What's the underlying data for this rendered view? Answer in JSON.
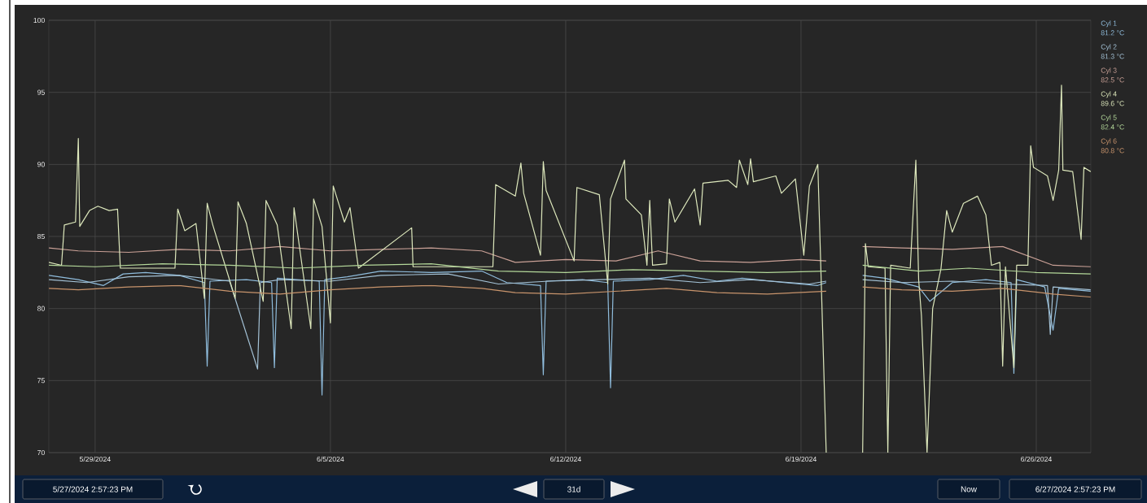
{
  "chart_data": {
    "type": "line",
    "xlim": [
      "2024-05-27T14:57",
      "2024-06-27T14:57"
    ],
    "ylim": [
      70,
      100
    ],
    "xticks": [
      {
        "value": "2024-05-29",
        "label": "5/29/2024"
      },
      {
        "value": "2024-06-05",
        "label": "6/5/2024"
      },
      {
        "value": "2024-06-12",
        "label": "6/12/2024"
      },
      {
        "value": "2024-06-19",
        "label": "6/19/2024"
      },
      {
        "value": "2024-06-26",
        "label": "6/26/2024"
      }
    ],
    "yticks": [
      70,
      75,
      80,
      85,
      90,
      95,
      100
    ],
    "grid": true,
    "legend": "right",
    "annotations": [
      "81.2 °C",
      "81.3 °C",
      "82.5 °C",
      "89.6 °C",
      "82.4 °C",
      "80.8 °C",
      "5/27/2024 2:57:23 PM",
      "31d",
      "Now",
      "6/27/2024 2:57:23 PM"
    ],
    "series": [
      {
        "name": "Cyl 1",
        "color": "#8fbcdc",
        "x": [
          "2024-05-27T15:00",
          "2024-05-28T12:00",
          "2024-05-29T06:00",
          "2024-05-29T20:00",
          "2024-05-30T12:00",
          "2024-05-31T12:00",
          "2024-06-01T06:00",
          "2024-06-01T08:00",
          "2024-06-01T10:00",
          "2024-06-02T12:00",
          "2024-06-03T06:00",
          "2024-06-03T08:00",
          "2024-06-03T10:00",
          "2024-06-04T16:00",
          "2024-06-04T18:00",
          "2024-06-04T20:00",
          "2024-06-05T12:00",
          "2024-06-06T12:00",
          "2024-06-08T00:00",
          "2024-06-09T12:00",
          "2024-06-10T06:00",
          "2024-06-11T06:00",
          "2024-06-11T08:00",
          "2024-06-11T10:00",
          "2024-06-12T12:00",
          "2024-06-13T06:00",
          "2024-06-13T08:00",
          "2024-06-13T10:00",
          "2024-06-14T12:00",
          "2024-06-15T12:00",
          "2024-06-16T12:00",
          "2024-06-17T06:00",
          "2024-06-18T12:00",
          "2024-06-19T12:00",
          "2024-06-19T18:00",
          "2024-06-20T12:00",
          "2024-06-20T20:00",
          "2024-06-21T12:00",
          "2024-06-22T12:00",
          "2024-06-22T20:00",
          "2024-06-23T12:00",
          "2024-06-24T12:00",
          "2024-06-25T06:00",
          "2024-06-25T08:00",
          "2024-06-25T10:00",
          "2024-06-26T06:00",
          "2024-06-26T12:00",
          "2024-06-26T16:00",
          "2024-06-27T14:50"
        ],
        "values": [
          82.3,
          82.0,
          81.6,
          82.4,
          82.5,
          82.3,
          81.8,
          76.0,
          81.9,
          82.0,
          81.8,
          75.9,
          82.1,
          81.9,
          74.0,
          82.0,
          82.2,
          82.6,
          82.5,
          82.6,
          81.8,
          81.6,
          75.4,
          81.9,
          82.0,
          81.8,
          74.5,
          81.9,
          82.0,
          82.3,
          81.9,
          82.1,
          81.8,
          81.6,
          81.8,
          null,
          82.3,
          82.1,
          81.5,
          80.5,
          81.8,
          82.0,
          81.8,
          75.5,
          82.0,
          81.5,
          78.5,
          81.4,
          81.2
        ]
      },
      {
        "name": "Cyl 2",
        "color": "#a4c2d6",
        "x": [
          "2024-05-27T15:00",
          "2024-05-28T18:00",
          "2024-05-30T00:00",
          "2024-05-31T12:00",
          "2024-06-02T00:00",
          "2024-06-02T20:00",
          "2024-06-02T22:00",
          "2024-06-03T12:00",
          "2024-06-05T00:00",
          "2024-06-06T12:00",
          "2024-06-08T12:00",
          "2024-06-10T00:00",
          "2024-06-11T12:00",
          "2024-06-13T00:00",
          "2024-06-14T12:00",
          "2024-06-16T00:00",
          "2024-06-17T12:00",
          "2024-06-19T06:00",
          "2024-06-19T18:00",
          "2024-06-20T12:00",
          "2024-06-20T20:00",
          "2024-06-22T00:00",
          "2024-06-23T12:00",
          "2024-06-25T00:00",
          "2024-06-26T08:00",
          "2024-06-26T10:00",
          "2024-06-26T12:00",
          "2024-06-27T14:50"
        ],
        "values": [
          82.0,
          81.8,
          82.2,
          82.3,
          81.9,
          75.8,
          81.8,
          82.0,
          81.9,
          82.3,
          82.4,
          81.7,
          81.9,
          82.0,
          82.1,
          81.8,
          82.0,
          81.7,
          81.9,
          null,
          82.0,
          81.8,
          81.9,
          81.7,
          81.6,
          78.2,
          81.5,
          81.3
        ]
      },
      {
        "name": "Cyl 3",
        "color": "#c9a096",
        "x": [
          "2024-05-27T15:00",
          "2024-05-28T12:00",
          "2024-05-30T00:00",
          "2024-05-31T12:00",
          "2024-06-02T00:00",
          "2024-06-03T12:00",
          "2024-06-05T00:00",
          "2024-06-06T12:00",
          "2024-06-08T00:00",
          "2024-06-09T12:00",
          "2024-06-10T12:00",
          "2024-06-12T00:00",
          "2024-06-13T12:00",
          "2024-06-14T18:00",
          "2024-06-16T00:00",
          "2024-06-17T12:00",
          "2024-06-19T00:00",
          "2024-06-19T18:00",
          "2024-06-20T12:00",
          "2024-06-20T20:00",
          "2024-06-22T00:00",
          "2024-06-23T12:00",
          "2024-06-25T00:00",
          "2024-06-26T12:00",
          "2024-06-27T14:50"
        ],
        "values": [
          84.2,
          84.0,
          83.9,
          84.1,
          84.0,
          84.3,
          84.0,
          84.1,
          84.2,
          84.0,
          83.2,
          83.4,
          83.3,
          84.0,
          83.3,
          83.2,
          83.4,
          83.3,
          null,
          84.3,
          84.2,
          84.1,
          84.3,
          83.0,
          82.9
        ]
      },
      {
        "name": "Cyl 4",
        "color": "#dde8bc",
        "x": [
          "2024-05-27T15:00",
          "2024-05-28T00:00",
          "2024-05-28T02:00",
          "2024-05-28T10:00",
          "2024-05-28T12:00",
          "2024-05-28T13:00",
          "2024-05-28T20:00",
          "2024-05-29T02:00",
          "2024-05-29T10:00",
          "2024-05-29T16:00",
          "2024-05-29T18:00",
          "2024-05-31T09:00",
          "2024-05-31T11:00",
          "2024-05-31T16:00",
          "2024-06-01T00:00",
          "2024-06-01T06:00",
          "2024-06-01T08:00",
          "2024-06-01T12:00",
          "2024-06-02T04:00",
          "2024-06-02T06:00",
          "2024-06-02T12:00",
          "2024-06-03T00:00",
          "2024-06-03T02:00",
          "2024-06-03T10:00",
          "2024-06-03T20:00",
          "2024-06-03T22:00",
          "2024-06-04T10:00",
          "2024-06-04T12:00",
          "2024-06-04T18:00",
          "2024-06-05T00:00",
          "2024-06-05T02:00",
          "2024-06-05T10:00",
          "2024-06-05T14:00",
          "2024-06-05T20:00",
          "2024-06-07T10:00",
          "2024-06-07T11:00",
          "2024-06-07T12:00",
          "2024-06-09T20:00",
          "2024-06-09T22:00",
          "2024-06-10T12:00",
          "2024-06-10T16:00",
          "2024-06-10T18:00",
          "2024-06-11T06:00",
          "2024-06-11T08:00",
          "2024-06-11T10:00",
          "2024-06-12T06:00",
          "2024-06-12T08:00",
          "2024-06-13T00:00",
          "2024-06-13T06:00",
          "2024-06-13T08:00",
          "2024-06-13T18:00",
          "2024-06-13T19:00",
          "2024-06-14T06:00",
          "2024-06-14T10:00",
          "2024-06-14T12:00",
          "2024-06-14T14:00",
          "2024-06-15T00:00",
          "2024-06-15T02:00",
          "2024-06-15T06:00",
          "2024-06-15T20:00",
          "2024-06-16T00:00",
          "2024-06-16T02:00",
          "2024-06-16T20:00",
          "2024-06-17T02:00",
          "2024-06-17T04:00",
          "2024-06-17T10:00",
          "2024-06-17T12:00",
          "2024-06-17T14:00",
          "2024-06-18T06:00",
          "2024-06-18T10:00",
          "2024-06-18T20:00",
          "2024-06-19T02:00",
          "2024-06-19T06:00",
          "2024-06-19T12:00",
          "2024-06-19T18:00",
          "2024-06-20T12:00",
          "2024-06-20T20:00",
          "2024-06-20T22:00",
          "2024-06-21T00:00",
          "2024-06-21T12:00",
          "2024-06-21T14:00",
          "2024-06-21T16:00",
          "2024-06-22T06:00",
          "2024-06-22T10:00",
          "2024-06-22T12:00",
          "2024-06-22T14:00",
          "2024-06-22T18:00",
          "2024-06-22T22:00",
          "2024-06-23T04:00",
          "2024-06-23T08:00",
          "2024-06-23T12:00",
          "2024-06-23T20:00",
          "2024-06-24T06:00",
          "2024-06-24T12:00",
          "2024-06-24T16:00",
          "2024-06-24T22:00",
          "2024-06-25T00:00",
          "2024-06-25T02:00",
          "2024-06-25T08:00",
          "2024-06-25T10:00",
          "2024-06-25T18:00",
          "2024-06-25T20:00",
          "2024-06-25T22:00",
          "2024-06-26T08:00",
          "2024-06-26T12:00",
          "2024-06-26T16:00",
          "2024-06-26T18:00",
          "2024-06-26T19:00",
          "2024-06-27T02:00",
          "2024-06-27T08:00",
          "2024-06-27T10:00",
          "2024-06-27T14:50"
        ],
        "values": [
          83.2,
          83.0,
          85.8,
          86.0,
          91.8,
          85.7,
          86.8,
          87.1,
          86.8,
          86.9,
          82.8,
          82.8,
          86.9,
          85.4,
          85.9,
          80.7,
          87.3,
          85.8,
          80.7,
          87.4,
          85.9,
          80.5,
          87.5,
          85.8,
          78.6,
          87.0,
          78.6,
          87.6,
          85.7,
          79.0,
          88.5,
          86.0,
          87.0,
          82.8,
          85.6,
          82.9,
          82.9,
          82.9,
          88.6,
          87.8,
          90.1,
          88.0,
          83.7,
          90.2,
          88.2,
          83.3,
          88.4,
          87.9,
          81.7,
          87.6,
          90.3,
          87.6,
          86.5,
          83.0,
          87.5,
          83.0,
          83.1,
          87.6,
          86.0,
          88.3,
          85.8,
          88.7,
          88.9,
          88.4,
          90.3,
          88.6,
          90.4,
          88.8,
          89.2,
          88.0,
          89.0,
          83.7,
          88.5,
          90.0,
          70,
          null,
          70,
          84.5,
          82.9,
          82.8,
          70,
          83.0,
          82.8,
          90.3,
          82.0,
          79.5,
          70,
          80.0,
          82.8,
          86.8,
          85.3,
          87.3,
          87.8,
          86.5,
          83.0,
          83.2,
          76.0,
          82.9,
          75.9,
          83.0,
          83.0,
          91.3,
          89.8,
          89.2,
          87.5,
          89.6,
          95.5,
          89.6,
          89.5,
          84.8,
          89.8,
          89.5
        ]
      },
      {
        "name": "Cyl 5",
        "color": "#b4d89a",
        "x": [
          "2024-05-27T15:00",
          "2024-05-29T00:00",
          "2024-05-31T00:00",
          "2024-06-02T00:00",
          "2024-06-04T00:00",
          "2024-06-06T00:00",
          "2024-06-08T00:00",
          "2024-06-10T00:00",
          "2024-06-12T00:00",
          "2024-06-14T00:00",
          "2024-06-16T00:00",
          "2024-06-18T00:00",
          "2024-06-19T18:00",
          "2024-06-20T12:00",
          "2024-06-20T20:00",
          "2024-06-22T12:00",
          "2024-06-24T00:00",
          "2024-06-26T00:00",
          "2024-06-27T14:50"
        ],
        "values": [
          83.0,
          82.9,
          83.1,
          83.0,
          82.8,
          83.0,
          83.1,
          82.6,
          82.5,
          82.7,
          82.6,
          82.5,
          82.6,
          null,
          83.0,
          82.6,
          82.8,
          82.5,
          82.4
        ]
      },
      {
        "name": "Cyl 6",
        "color": "#c8946c",
        "x": [
          "2024-05-27T15:00",
          "2024-05-28T12:00",
          "2024-05-30T00:00",
          "2024-05-31T12:00",
          "2024-06-02T00:00",
          "2024-06-03T12:00",
          "2024-06-05T00:00",
          "2024-06-06T12:00",
          "2024-06-08T00:00",
          "2024-06-09T12:00",
          "2024-06-10T12:00",
          "2024-06-12T00:00",
          "2024-06-13T12:00",
          "2024-06-15T00:00",
          "2024-06-16T12:00",
          "2024-06-18T00:00",
          "2024-06-19T18:00",
          "2024-06-20T12:00",
          "2024-06-20T20:00",
          "2024-06-22T00:00",
          "2024-06-23T12:00",
          "2024-06-25T00:00",
          "2024-06-26T12:00",
          "2024-06-27T14:50"
        ],
        "values": [
          81.4,
          81.3,
          81.5,
          81.6,
          81.2,
          81.0,
          81.3,
          81.5,
          81.6,
          81.4,
          81.1,
          81.0,
          81.2,
          81.4,
          81.1,
          81.0,
          81.2,
          null,
          81.5,
          81.3,
          81.2,
          81.4,
          81.0,
          80.8
        ]
      }
    ]
  }
}
